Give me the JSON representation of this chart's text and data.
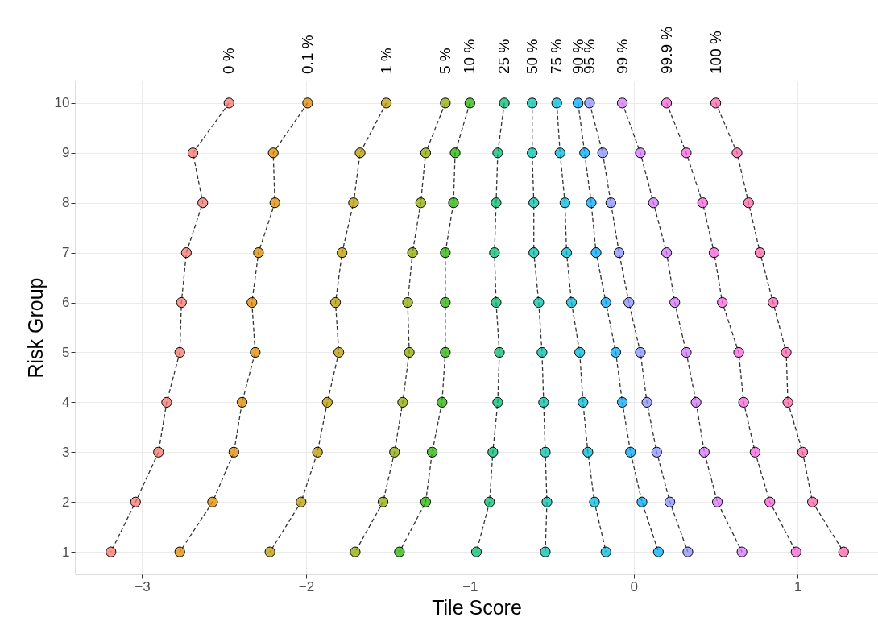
{
  "chart_data": {
    "type": "line",
    "xlabel": "Tile Score",
    "ylabel": "Risk Group",
    "xlim": [
      -3.41,
      1.49
    ],
    "ylim": [
      0.55,
      10.45
    ],
    "xticks": [
      -3,
      -2,
      -1,
      0,
      1
    ],
    "yticks": [
      1,
      2,
      3,
      4,
      5,
      6,
      7,
      8,
      9,
      10
    ],
    "grid": true,
    "marker": "circle",
    "line_style": "dashed",
    "series": [
      {
        "name": "0 %",
        "color": "#F8766D",
        "x": [
          -2.47,
          -2.69,
          -2.63,
          -2.73,
          -2.76,
          -2.77,
          -2.85,
          -2.9,
          -3.04,
          -3.19
        ],
        "values": [
          10,
          9,
          8,
          7,
          6,
          5,
          4,
          3,
          2,
          1
        ]
      },
      {
        "name": "0.1 %",
        "color": "#E18A00",
        "x": [
          -1.99,
          -2.2,
          -2.19,
          -2.29,
          -2.33,
          -2.31,
          -2.39,
          -2.44,
          -2.57,
          -2.77
        ],
        "values": [
          10,
          9,
          8,
          7,
          6,
          5,
          4,
          3,
          2,
          1
        ]
      },
      {
        "name": "1 %",
        "color": "#BE9C00",
        "x": [
          -1.51,
          -1.67,
          -1.71,
          -1.78,
          -1.82,
          -1.8,
          -1.87,
          -1.93,
          -2.03,
          -2.22
        ],
        "values": [
          10,
          9,
          8,
          7,
          6,
          5,
          4,
          3,
          2,
          1
        ]
      },
      {
        "name": "5 %",
        "color": "#8CAB00",
        "x": [
          -1.15,
          -1.27,
          -1.3,
          -1.35,
          -1.38,
          -1.37,
          -1.41,
          -1.46,
          -1.53,
          -1.7
        ],
        "values": [
          10,
          9,
          8,
          7,
          6,
          5,
          4,
          3,
          2,
          1
        ]
      },
      {
        "name": "10 %",
        "color": "#24B700",
        "x": [
          -1.0,
          -1.09,
          -1.1,
          -1.15,
          -1.15,
          -1.15,
          -1.17,
          -1.23,
          -1.27,
          -1.43
        ],
        "values": [
          10,
          9,
          8,
          7,
          6,
          5,
          4,
          3,
          2,
          1
        ]
      },
      {
        "name": "25 %",
        "color": "#00BE70",
        "x": [
          -0.79,
          -0.83,
          -0.84,
          -0.85,
          -0.84,
          -0.82,
          -0.83,
          -0.86,
          -0.88,
          -0.96
        ],
        "values": [
          10,
          9,
          8,
          7,
          6,
          5,
          4,
          3,
          2,
          1
        ]
      },
      {
        "name": "50 %",
        "color": "#00C1AB",
        "x": [
          -0.62,
          -0.62,
          -0.61,
          -0.61,
          -0.58,
          -0.56,
          -0.55,
          -0.54,
          -0.53,
          -0.54
        ],
        "values": [
          10,
          9,
          8,
          7,
          6,
          5,
          4,
          3,
          2,
          1
        ]
      },
      {
        "name": "75 %",
        "color": "#00BBDA",
        "x": [
          -0.47,
          -0.45,
          -0.42,
          -0.41,
          -0.38,
          -0.33,
          -0.31,
          -0.28,
          -0.24,
          -0.17
        ],
        "values": [
          10,
          9,
          8,
          7,
          6,
          5,
          4,
          3,
          2,
          1
        ]
      },
      {
        "name": "90 %",
        "color": "#00ACFC",
        "x": [
          -0.34,
          -0.3,
          -0.26,
          -0.23,
          -0.17,
          -0.11,
          -0.07,
          -0.02,
          0.05,
          0.15
        ],
        "values": [
          10,
          9,
          8,
          7,
          6,
          5,
          4,
          3,
          2,
          1
        ]
      },
      {
        "name": "95 %",
        "color": "#8B93FF",
        "x": [
          -0.27,
          -0.19,
          -0.14,
          -0.09,
          -0.03,
          0.04,
          0.08,
          0.14,
          0.22,
          0.33
        ],
        "values": [
          10,
          9,
          8,
          7,
          6,
          5,
          4,
          3,
          2,
          1
        ]
      },
      {
        "name": "99 %",
        "color": "#D575FE",
        "x": [
          -0.07,
          0.04,
          0.12,
          0.2,
          0.25,
          0.32,
          0.38,
          0.43,
          0.51,
          0.66
        ],
        "values": [
          10,
          9,
          8,
          7,
          6,
          5,
          4,
          3,
          2,
          1
        ]
      },
      {
        "name": "99.9 %",
        "color": "#F962DD",
        "x": [
          0.2,
          0.32,
          0.42,
          0.49,
          0.54,
          0.64,
          0.67,
          0.74,
          0.83,
          0.99
        ],
        "values": [
          10,
          9,
          8,
          7,
          6,
          5,
          4,
          3,
          2,
          1
        ]
      },
      {
        "name": "100 %",
        "color": "#FF65AC",
        "x": [
          0.5,
          0.63,
          0.7,
          0.77,
          0.85,
          0.93,
          0.94,
          1.03,
          1.09,
          1.28
        ],
        "values": [
          10,
          9,
          8,
          7,
          6,
          5,
          4,
          3,
          2,
          1
        ]
      }
    ]
  }
}
